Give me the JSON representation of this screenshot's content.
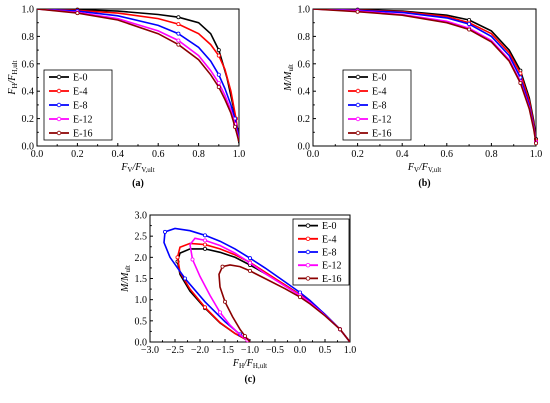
{
  "chart_data": [
    {
      "type": "line",
      "panel_label": "(a)",
      "xlabel": "FV/FV,ult",
      "ylabel": "FH/FH,ult",
      "xlim": [
        0,
        1
      ],
      "ylim": [
        0,
        1
      ],
      "x_ticks": [
        "0.0",
        "0.2",
        "0.4",
        "0.6",
        "0.8",
        "1.0"
      ],
      "y_ticks": [
        "0.0",
        "0.2",
        "0.4",
        "0.6",
        "0.8",
        "1.0"
      ],
      "legend_position": "bottom-left",
      "series": [
        {
          "name": "E-0",
          "color": "#000000",
          "x": [
            0,
            0.2,
            0.4,
            0.6,
            0.7,
            0.8,
            0.86,
            0.9,
            0.94,
            0.97,
            0.99,
            1.0
          ],
          "y": [
            1,
            0.995,
            0.985,
            0.96,
            0.94,
            0.9,
            0.82,
            0.7,
            0.5,
            0.3,
            0.12,
            0.02
          ]
        },
        {
          "name": "E-4",
          "color": "#ff0000",
          "x": [
            0,
            0.2,
            0.4,
            0.6,
            0.7,
            0.8,
            0.86,
            0.9,
            0.93,
            0.96,
            0.985,
            1.0
          ],
          "y": [
            1,
            0.99,
            0.97,
            0.93,
            0.89,
            0.82,
            0.74,
            0.66,
            0.56,
            0.4,
            0.2,
            0.05
          ]
        },
        {
          "name": "E-8",
          "color": "#0000ff",
          "x": [
            0,
            0.2,
            0.4,
            0.6,
            0.7,
            0.8,
            0.86,
            0.9,
            0.93,
            0.96,
            0.98,
            1.0
          ],
          "y": [
            1,
            0.985,
            0.95,
            0.88,
            0.82,
            0.72,
            0.62,
            0.52,
            0.42,
            0.3,
            0.2,
            0.06
          ]
        },
        {
          "name": "E-12",
          "color": "#ff00ff",
          "x": [
            0,
            0.2,
            0.4,
            0.6,
            0.7,
            0.8,
            0.86,
            0.9,
            0.93,
            0.96,
            0.98,
            1.0
          ],
          "y": [
            1,
            0.975,
            0.93,
            0.84,
            0.77,
            0.66,
            0.55,
            0.46,
            0.37,
            0.26,
            0.16,
            0.04
          ]
        },
        {
          "name": "E-16",
          "color": "#8b0000",
          "x": [
            0,
            0.2,
            0.4,
            0.6,
            0.7,
            0.8,
            0.86,
            0.9,
            0.93,
            0.96,
            0.98,
            1.0
          ],
          "y": [
            1,
            0.97,
            0.92,
            0.82,
            0.74,
            0.63,
            0.52,
            0.43,
            0.34,
            0.24,
            0.14,
            0.03
          ]
        }
      ]
    },
    {
      "type": "line",
      "panel_label": "(b)",
      "xlabel": "FV/FV,ult",
      "ylabel": "M/Mult",
      "xlim": [
        0,
        1
      ],
      "ylim": [
        0,
        1
      ],
      "x_ticks": [
        "0.0",
        "0.2",
        "0.4",
        "0.6",
        "0.8",
        "1.0"
      ],
      "y_ticks": [
        "0.0",
        "0.2",
        "0.4",
        "0.6",
        "0.8",
        "1.0"
      ],
      "legend_position": "bottom-left",
      "series": [
        {
          "name": "E-0",
          "color": "#000000",
          "x": [
            0,
            0.2,
            0.4,
            0.6,
            0.7,
            0.8,
            0.88,
            0.93,
            0.97,
            0.99,
            1.0
          ],
          "y": [
            1,
            0.995,
            0.985,
            0.955,
            0.92,
            0.84,
            0.7,
            0.55,
            0.35,
            0.18,
            0.05
          ]
        },
        {
          "name": "E-4",
          "color": "#ff0000",
          "x": [
            0,
            0.2,
            0.4,
            0.6,
            0.7,
            0.8,
            0.88,
            0.93,
            0.97,
            0.99,
            1.0
          ],
          "y": [
            1,
            0.993,
            0.98,
            0.945,
            0.9,
            0.82,
            0.68,
            0.53,
            0.33,
            0.16,
            0.04
          ]
        },
        {
          "name": "E-8",
          "color": "#0000ff",
          "x": [
            0,
            0.2,
            0.4,
            0.6,
            0.7,
            0.8,
            0.88,
            0.93,
            0.97,
            0.99,
            1.0
          ],
          "y": [
            1,
            0.99,
            0.975,
            0.935,
            0.89,
            0.8,
            0.66,
            0.5,
            0.3,
            0.14,
            0.03
          ]
        },
        {
          "name": "E-12",
          "color": "#ff00ff",
          "x": [
            0,
            0.2,
            0.4,
            0.6,
            0.7,
            0.8,
            0.88,
            0.93,
            0.97,
            0.99,
            1.0
          ],
          "y": [
            1,
            0.985,
            0.96,
            0.91,
            0.86,
            0.77,
            0.63,
            0.47,
            0.28,
            0.13,
            0.03
          ]
        },
        {
          "name": "E-16",
          "color": "#8b0000",
          "x": [
            0,
            0.2,
            0.4,
            0.6,
            0.7,
            0.8,
            0.88,
            0.93,
            0.97,
            0.99,
            1.0
          ],
          "y": [
            1,
            0.98,
            0.955,
            0.9,
            0.85,
            0.76,
            0.62,
            0.46,
            0.27,
            0.12,
            0.02
          ]
        }
      ]
    },
    {
      "type": "line",
      "panel_label": "(c)",
      "xlabel": "FH/FH,ult",
      "ylabel": "M/Mult",
      "xlim": [
        -3,
        1
      ],
      "ylim": [
        0,
        3
      ],
      "x_ticks": [
        "−3.0",
        "−2.5",
        "−2.0",
        "−1.5",
        "−1.0",
        "−0.5",
        "0.0",
        "0.5",
        "1.0"
      ],
      "y_ticks": [
        "0.0",
        "0.5",
        "1.0",
        "1.5",
        "2.0",
        "2.5",
        "3.0"
      ],
      "legend_position": "top-right",
      "series": [
        {
          "name": "E-0",
          "color": "#000000",
          "x": [
            1.0,
            0.8,
            0.5,
            0.2,
            0.0,
            -0.3,
            -0.7,
            -1.0,
            -1.3,
            -1.6,
            -1.9,
            -2.2,
            -2.4,
            -2.45,
            -2.4,
            -2.2,
            -1.9,
            -1.6,
            -1.3,
            -1.05,
            -1.0
          ],
          "y": [
            0,
            0.3,
            0.65,
            0.95,
            1.12,
            1.35,
            1.62,
            1.82,
            2.0,
            2.12,
            2.2,
            2.2,
            2.1,
            1.9,
            1.6,
            1.2,
            0.8,
            0.45,
            0.2,
            0.04,
            0
          ]
        },
        {
          "name": "E-4",
          "color": "#ff0000",
          "x": [
            1.0,
            0.8,
            0.5,
            0.2,
            0.0,
            -0.3,
            -0.7,
            -1.0,
            -1.3,
            -1.6,
            -1.9,
            -2.2,
            -2.4,
            -2.45,
            -2.4,
            -2.2,
            -1.9,
            -1.6,
            -1.3,
            -1.05,
            -1.0
          ],
          "y": [
            0,
            0.3,
            0.65,
            0.95,
            1.12,
            1.35,
            1.65,
            1.88,
            2.06,
            2.2,
            2.3,
            2.33,
            2.24,
            2.0,
            1.65,
            1.25,
            0.82,
            0.46,
            0.2,
            0.04,
            0
          ]
        },
        {
          "name": "E-8",
          "color": "#0000ff",
          "x": [
            1.0,
            0.8,
            0.5,
            0.2,
            0.0,
            -0.3,
            -0.7,
            -1.0,
            -1.3,
            -1.6,
            -1.9,
            -2.2,
            -2.5,
            -2.7,
            -2.72,
            -2.6,
            -2.3,
            -1.9,
            -1.5,
            -1.2,
            -1.0
          ],
          "y": [
            0,
            0.3,
            0.65,
            0.98,
            1.17,
            1.42,
            1.75,
            1.98,
            2.2,
            2.38,
            2.52,
            2.63,
            2.68,
            2.6,
            2.35,
            2.0,
            1.5,
            0.95,
            0.48,
            0.18,
            0
          ]
        },
        {
          "name": "E-12",
          "color": "#ff00ff",
          "x": [
            1.0,
            0.8,
            0.5,
            0.2,
            0.0,
            -0.3,
            -0.7,
            -1.0,
            -1.3,
            -1.6,
            -1.9,
            -2.1,
            -2.2,
            -2.15,
            -2.0,
            -1.8,
            -1.6,
            -1.4,
            -1.2,
            -1.05,
            -1.0
          ],
          "y": [
            0,
            0.3,
            0.63,
            0.93,
            1.1,
            1.32,
            1.62,
            1.87,
            2.1,
            2.28,
            2.4,
            2.45,
            2.3,
            1.95,
            1.55,
            1.1,
            0.7,
            0.4,
            0.17,
            0.04,
            0
          ]
        },
        {
          "name": "E-16",
          "color": "#8b0000",
          "x": [
            1.0,
            0.8,
            0.5,
            0.2,
            0.0,
            -0.3,
            -0.7,
            -1.0,
            -1.2,
            -1.4,
            -1.55,
            -1.62,
            -1.6,
            -1.5,
            -1.35,
            -1.2,
            -1.1,
            -1.03,
            -1.0
          ],
          "y": [
            0,
            0.3,
            0.62,
            0.9,
            1.06,
            1.26,
            1.5,
            1.68,
            1.78,
            1.82,
            1.78,
            1.6,
            1.3,
            0.95,
            0.6,
            0.3,
            0.14,
            0.04,
            0
          ]
        }
      ]
    }
  ]
}
